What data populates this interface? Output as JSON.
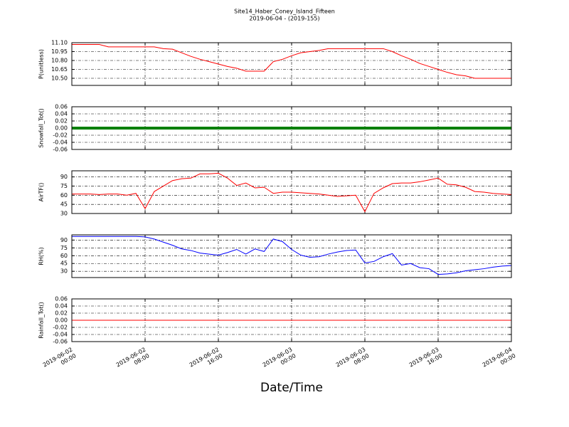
{
  "chart_data": [
    {
      "type": "line",
      "title": "Site14_Haber_Coney_Island_Fifteen",
      "subtitle": "2019-06-04 - (2019-155)",
      "ylabel": "P(unitless)",
      "x": [
        "2019-06-02 00:00",
        "2019-06-02 01:00",
        "2019-06-02 02:00",
        "2019-06-02 03:00",
        "2019-06-02 04:00",
        "2019-06-02 05:00",
        "2019-06-02 06:00",
        "2019-06-02 07:00",
        "2019-06-02 08:00",
        "2019-06-02 09:00",
        "2019-06-02 10:00",
        "2019-06-02 11:00",
        "2019-06-02 12:00",
        "2019-06-02 13:00",
        "2019-06-02 14:00",
        "2019-06-02 15:00",
        "2019-06-02 16:00",
        "2019-06-02 17:00",
        "2019-06-02 18:00",
        "2019-06-02 19:00",
        "2019-06-02 20:00",
        "2019-06-02 21:00",
        "2019-06-02 22:00",
        "2019-06-02 23:00",
        "2019-06-03 00:00",
        "2019-06-03 01:00",
        "2019-06-03 02:00",
        "2019-06-03 03:00",
        "2019-06-03 04:00",
        "2019-06-03 05:00",
        "2019-06-03 06:00",
        "2019-06-03 07:00",
        "2019-06-03 08:00",
        "2019-06-03 09:00",
        "2019-06-03 10:00",
        "2019-06-03 11:00",
        "2019-06-03 12:00",
        "2019-06-03 13:00",
        "2019-06-03 14:00",
        "2019-06-03 15:00",
        "2019-06-03 16:00",
        "2019-06-03 17:00",
        "2019-06-03 18:00",
        "2019-06-03 19:00",
        "2019-06-03 20:00",
        "2019-06-03 21:00",
        "2019-06-03 22:00",
        "2019-06-03 23:00",
        "2019-06-04 00:00"
      ],
      "series": [
        {
          "name": "P",
          "color": "#ff0000",
          "values": [
            11.07,
            11.07,
            11.07,
            11.07,
            11.03,
            11.03,
            11.03,
            11.03,
            11.03,
            11.03,
            11.0,
            10.99,
            10.93,
            10.87,
            10.82,
            10.78,
            10.74,
            10.7,
            10.67,
            10.62,
            10.62,
            10.62,
            10.78,
            10.82,
            10.88,
            10.93,
            10.95,
            10.97,
            11.0,
            11.0,
            11.0,
            11.0,
            11.0,
            11.0,
            11.0,
            10.95,
            10.88,
            10.82,
            10.75,
            10.7,
            10.65,
            10.6,
            10.56,
            10.54,
            10.5,
            10.5,
            10.5,
            10.5,
            10.5
          ]
        }
      ],
      "ylim": [
        10.38,
        11.1
      ],
      "yticks": [
        {
          "value": 10.5,
          "label": "10.50"
        },
        10.65,
        {
          "value": 10.8,
          "label": "10.80"
        },
        10.95,
        {
          "value": 11.1,
          "label": "11.10"
        }
      ],
      "grid": true
    },
    {
      "type": "line",
      "ylabel": "Snowfall_Tot()",
      "x": [
        "2019-06-02 00:00",
        "2019-06-02 01:00",
        "2019-06-02 02:00",
        "2019-06-02 03:00",
        "2019-06-02 04:00",
        "2019-06-02 05:00",
        "2019-06-02 06:00",
        "2019-06-02 07:00",
        "2019-06-02 08:00",
        "2019-06-02 09:00",
        "2019-06-02 10:00",
        "2019-06-02 11:00",
        "2019-06-02 12:00",
        "2019-06-02 13:00",
        "2019-06-02 14:00",
        "2019-06-02 15:00",
        "2019-06-02 16:00",
        "2019-06-02 17:00",
        "2019-06-02 18:00",
        "2019-06-02 19:00",
        "2019-06-02 20:00",
        "2019-06-02 21:00",
        "2019-06-02 22:00",
        "2019-06-02 23:00",
        "2019-06-03 00:00",
        "2019-06-03 01:00",
        "2019-06-03 02:00",
        "2019-06-03 03:00",
        "2019-06-03 04:00",
        "2019-06-03 05:00",
        "2019-06-03 06:00",
        "2019-06-03 07:00",
        "2019-06-03 08:00",
        "2019-06-03 09:00",
        "2019-06-03 10:00",
        "2019-06-03 11:00",
        "2019-06-03 12:00",
        "2019-06-03 13:00",
        "2019-06-03 14:00",
        "2019-06-03 15:00",
        "2019-06-03 16:00",
        "2019-06-03 17:00",
        "2019-06-03 18:00",
        "2019-06-03 19:00",
        "2019-06-03 20:00",
        "2019-06-03 21:00",
        "2019-06-03 22:00",
        "2019-06-03 23:00",
        "2019-06-04 00:00"
      ],
      "series": [
        {
          "name": "Snowfall_Tot",
          "color": "#008000",
          "values": [
            0,
            0,
            0,
            0,
            0,
            0,
            0,
            0,
            0,
            0,
            0,
            0,
            0,
            0,
            0,
            0,
            0,
            0,
            0,
            0,
            0,
            0,
            0,
            0,
            0,
            0,
            0,
            0,
            0,
            0,
            0,
            0,
            0,
            0,
            0,
            0,
            0,
            0,
            0,
            0,
            0,
            0,
            0,
            0,
            0,
            0,
            0,
            0,
            0
          ]
        }
      ],
      "ylim": [
        -0.06,
        0.06
      ],
      "yticks": [
        -0.06,
        -0.04,
        -0.02,
        {
          "value": 0,
          "label": "0.00"
        },
        0.02,
        0.04,
        0.06
      ],
      "grid": true,
      "line_width": 4
    },
    {
      "type": "line",
      "ylabel": "AirTF()",
      "x": [
        "2019-06-02 00:00",
        "2019-06-02 01:00",
        "2019-06-02 02:00",
        "2019-06-02 03:00",
        "2019-06-02 04:00",
        "2019-06-02 05:00",
        "2019-06-02 06:00",
        "2019-06-02 07:00",
        "2019-06-02 08:00",
        "2019-06-02 09:00",
        "2019-06-02 10:00",
        "2019-06-02 11:00",
        "2019-06-02 12:00",
        "2019-06-02 13:00",
        "2019-06-02 14:00",
        "2019-06-02 15:00",
        "2019-06-02 16:00",
        "2019-06-02 17:00",
        "2019-06-02 18:00",
        "2019-06-02 19:00",
        "2019-06-02 20:00",
        "2019-06-02 21:00",
        "2019-06-02 22:00",
        "2019-06-02 23:00",
        "2019-06-03 00:00",
        "2019-06-03 01:00",
        "2019-06-03 02:00",
        "2019-06-03 03:00",
        "2019-06-03 04:00",
        "2019-06-03 05:00",
        "2019-06-03 06:00",
        "2019-06-03 07:00",
        "2019-06-03 08:00",
        "2019-06-03 09:00",
        "2019-06-03 10:00",
        "2019-06-03 11:00",
        "2019-06-03 12:00",
        "2019-06-03 13:00",
        "2019-06-03 14:00",
        "2019-06-03 15:00",
        "2019-06-03 16:00",
        "2019-06-03 17:00",
        "2019-06-03 18:00",
        "2019-06-03 19:00",
        "2019-06-03 20:00",
        "2019-06-03 21:00",
        "2019-06-03 22:00",
        "2019-06-03 23:00",
        "2019-06-04 00:00"
      ],
      "series": [
        {
          "name": "AirTF",
          "color": "#ff0000",
          "values": [
            62,
            62,
            62,
            61,
            62,
            62,
            60,
            63,
            38,
            66,
            75,
            84,
            87,
            88,
            95,
            95,
            96,
            88,
            76,
            80,
            72,
            73,
            63,
            65,
            65,
            64,
            63,
            62,
            60,
            58,
            59,
            60,
            33,
            63,
            72,
            79,
            80,
            80,
            82,
            85,
            88,
            78,
            77,
            73,
            66,
            65,
            63,
            62,
            61
          ]
        }
      ],
      "ylim": [
        30,
        100
      ],
      "yticks": [
        30,
        45,
        60,
        75,
        90
      ],
      "grid": true
    },
    {
      "type": "line",
      "ylabel": "RH(%)",
      "x": [
        "2019-06-02 00:00",
        "2019-06-02 01:00",
        "2019-06-02 02:00",
        "2019-06-02 03:00",
        "2019-06-02 04:00",
        "2019-06-02 05:00",
        "2019-06-02 06:00",
        "2019-06-02 07:00",
        "2019-06-02 08:00",
        "2019-06-02 09:00",
        "2019-06-02 10:00",
        "2019-06-02 11:00",
        "2019-06-02 12:00",
        "2019-06-02 13:00",
        "2019-06-02 14:00",
        "2019-06-02 15:00",
        "2019-06-02 16:00",
        "2019-06-02 17:00",
        "2019-06-02 18:00",
        "2019-06-02 19:00",
        "2019-06-02 20:00",
        "2019-06-02 21:00",
        "2019-06-02 22:00",
        "2019-06-02 23:00",
        "2019-06-03 00:00",
        "2019-06-03 01:00",
        "2019-06-03 02:00",
        "2019-06-03 03:00",
        "2019-06-03 04:00",
        "2019-06-03 05:00",
        "2019-06-03 06:00",
        "2019-06-03 07:00",
        "2019-06-03 08:00",
        "2019-06-03 09:00",
        "2019-06-03 10:00",
        "2019-06-03 11:00",
        "2019-06-03 12:00",
        "2019-06-03 13:00",
        "2019-06-03 14:00",
        "2019-06-03 15:00",
        "2019-06-03 16:00",
        "2019-06-03 17:00",
        "2019-06-03 18:00",
        "2019-06-03 19:00",
        "2019-06-03 20:00",
        "2019-06-03 21:00",
        "2019-06-03 22:00",
        "2019-06-03 23:00",
        "2019-06-04 00:00"
      ],
      "series": [
        {
          "name": "RH",
          "color": "#0000ff",
          "values": [
            97,
            97,
            97,
            97,
            97,
            97,
            97,
            97,
            96,
            92,
            86,
            80,
            73,
            70,
            65,
            63,
            61,
            66,
            72,
            63,
            73,
            68,
            92,
            87,
            72,
            61,
            57,
            58,
            63,
            67,
            70,
            71,
            46,
            49,
            58,
            64,
            42,
            45,
            37,
            35,
            24,
            25,
            27,
            31,
            33,
            35,
            38,
            40,
            41
          ]
        }
      ],
      "ylim": [
        18,
        100
      ],
      "yticks": [
        30,
        45,
        60,
        75,
        90
      ],
      "grid": true
    },
    {
      "type": "line",
      "ylabel": "Rainfall_Tot()",
      "xlabel": "Date/Time",
      "x": [
        "2019-06-02 00:00",
        "2019-06-02 01:00",
        "2019-06-02 02:00",
        "2019-06-02 03:00",
        "2019-06-02 04:00",
        "2019-06-02 05:00",
        "2019-06-02 06:00",
        "2019-06-02 07:00",
        "2019-06-02 08:00",
        "2019-06-02 09:00",
        "2019-06-02 10:00",
        "2019-06-02 11:00",
        "2019-06-02 12:00",
        "2019-06-02 13:00",
        "2019-06-02 14:00",
        "2019-06-02 15:00",
        "2019-06-02 16:00",
        "2019-06-02 17:00",
        "2019-06-02 18:00",
        "2019-06-02 19:00",
        "2019-06-02 20:00",
        "2019-06-02 21:00",
        "2019-06-02 22:00",
        "2019-06-02 23:00",
        "2019-06-03 00:00",
        "2019-06-03 01:00",
        "2019-06-03 02:00",
        "2019-06-03 03:00",
        "2019-06-03 04:00",
        "2019-06-03 05:00",
        "2019-06-03 06:00",
        "2019-06-03 07:00",
        "2019-06-03 08:00",
        "2019-06-03 09:00",
        "2019-06-03 10:00",
        "2019-06-03 11:00",
        "2019-06-03 12:00",
        "2019-06-03 13:00",
        "2019-06-03 14:00",
        "2019-06-03 15:00",
        "2019-06-03 16:00",
        "2019-06-03 17:00",
        "2019-06-03 18:00",
        "2019-06-03 19:00",
        "2019-06-03 20:00",
        "2019-06-03 21:00",
        "2019-06-03 22:00",
        "2019-06-03 23:00",
        "2019-06-04 00:00"
      ],
      "series": [
        {
          "name": "Rainfall_Tot",
          "color": "#ff0000",
          "values": [
            0,
            0,
            0,
            0,
            0,
            0,
            0,
            0,
            0,
            0,
            0,
            0,
            0,
            0,
            0,
            0,
            0,
            0,
            0,
            0,
            0,
            0,
            0,
            0,
            0,
            0,
            0,
            0,
            0,
            0,
            0,
            0,
            0,
            0,
            0,
            0,
            0,
            0,
            0,
            0,
            0,
            0,
            0,
            0,
            0,
            0,
            0,
            0,
            0
          ]
        }
      ],
      "ylim": [
        -0.06,
        0.06
      ],
      "yticks": [
        -0.06,
        -0.04,
        -0.02,
        {
          "value": 0,
          "label": "0.00"
        },
        0.02,
        0.04,
        0.06
      ],
      "grid": true,
      "xlim": [
        "2019-06-02 00:00",
        "2019-06-04 00:00"
      ],
      "xticks": [
        {
          "value": "2019-06-02 00:00",
          "label": "2019-06-02\n00:00"
        },
        {
          "value": "2019-06-02 08:00",
          "label": "2019-06-02\n08:00"
        },
        {
          "value": "2019-06-02 16:00",
          "label": "2019-06-02\n16:00"
        },
        {
          "value": "2019-06-03 00:00",
          "label": "2019-06-03\n00:00"
        },
        {
          "value": "2019-06-03 08:00",
          "label": "2019-06-03\n08:00"
        },
        {
          "value": "2019-06-03 16:00",
          "label": "2019-06-03\n16:00"
        },
        {
          "value": "2019-06-04 00:00",
          "label": "2019-06-04\n00:00"
        }
      ]
    }
  ]
}
